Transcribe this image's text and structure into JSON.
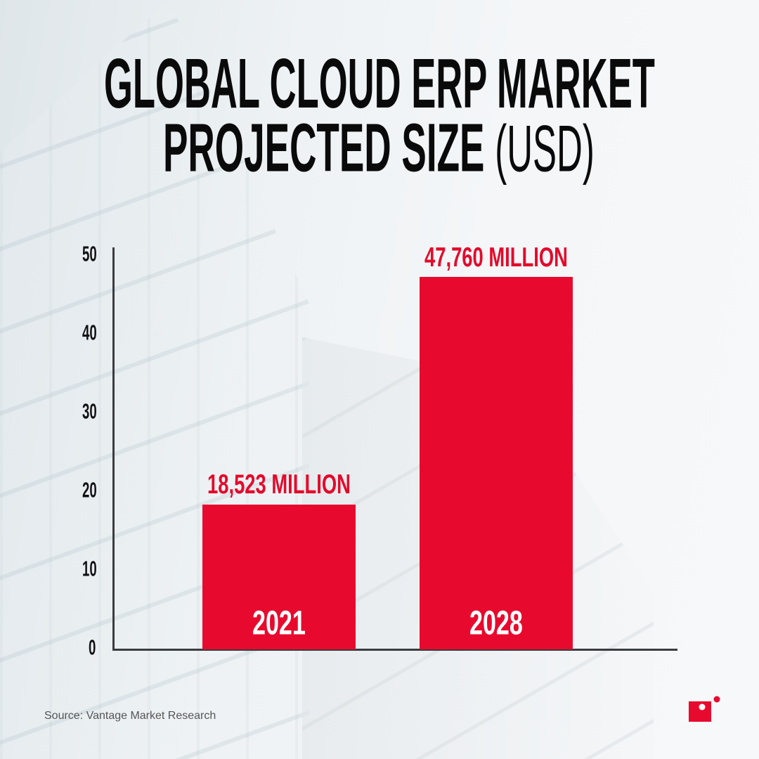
{
  "title": {
    "line1": "GLOBAL CLOUD ERP MARKET",
    "line2": "PROJECTED SIZE",
    "line2_unit": "(USD)"
  },
  "chart_data": {
    "type": "bar",
    "categories": [
      "2021",
      "2028"
    ],
    "values": [
      18.523,
      47.76
    ],
    "data_labels": [
      "18,523 MILLION",
      "47,760 MILLION"
    ],
    "yticks": [
      "0",
      "10",
      "20",
      "30",
      "40",
      "50"
    ],
    "ylim": [
      0,
      50
    ],
    "grid": false,
    "bar_color": "#e80a2e"
  },
  "source": "Source: Vantage Market Research",
  "logo": {
    "color": "#e80a2e",
    "icon": "brand-logo-icon"
  }
}
